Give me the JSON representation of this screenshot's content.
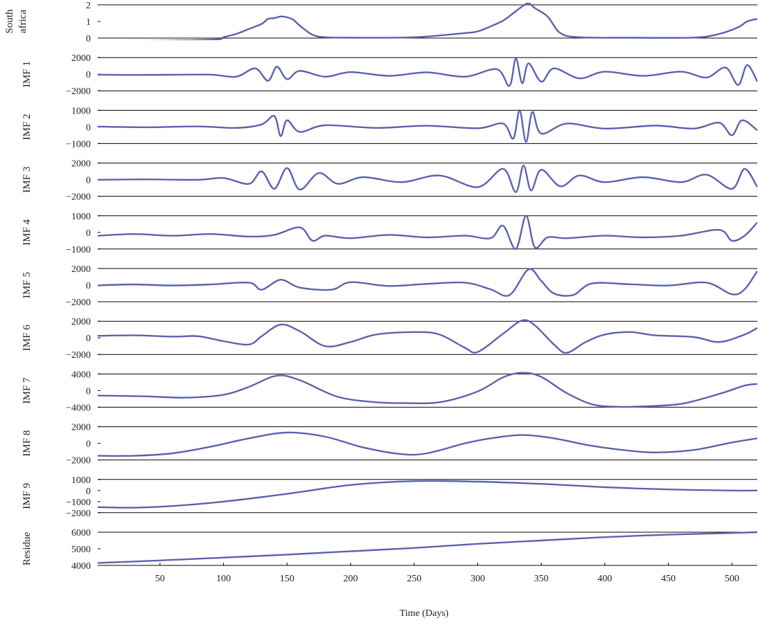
{
  "chart_data": {
    "type": "line",
    "xlabel": "Time (Days)",
    "xlim": [
      1,
      520
    ],
    "xticks": [
      50,
      100,
      150,
      200,
      250,
      300,
      350,
      400,
      450,
      500
    ],
    "line_color": "#5a62ad",
    "panels": [
      {
        "name": "South africa",
        "label_lines": [
          "South",
          "africa"
        ],
        "ylim": [
          0,
          2
        ],
        "yticks": [
          0,
          1,
          2
        ],
        "points": [
          [
            1,
            -0.18
          ],
          [
            30,
            -0.17
          ],
          [
            60,
            -0.15
          ],
          [
            95,
            -0.08
          ],
          [
            100,
            0.05
          ],
          [
            110,
            0.25
          ],
          [
            120,
            0.55
          ],
          [
            130,
            0.85
          ],
          [
            135,
            1.15
          ],
          [
            140,
            1.2
          ],
          [
            145,
            1.3
          ],
          [
            150,
            1.25
          ],
          [
            155,
            1.1
          ],
          [
            160,
            0.75
          ],
          [
            170,
            0.2
          ],
          [
            180,
            0.05
          ],
          [
            200,
            0.02
          ],
          [
            250,
            0.05
          ],
          [
            290,
            0.3
          ],
          [
            300,
            0.4
          ],
          [
            310,
            0.7
          ],
          [
            320,
            1.05
          ],
          [
            328,
            1.5
          ],
          [
            335,
            1.9
          ],
          [
            340,
            2.1
          ],
          [
            345,
            1.8
          ],
          [
            355,
            1.3
          ],
          [
            365,
            0.3
          ],
          [
            380,
            0.05
          ],
          [
            420,
            0.02
          ],
          [
            470,
            0.03
          ],
          [
            490,
            0.25
          ],
          [
            505,
            0.65
          ],
          [
            512,
            1.0
          ],
          [
            520,
            1.15
          ]
        ]
      },
      {
        "name": "IMF 1",
        "label_lines": [
          "IMF 1"
        ],
        "ylim": [
          -2000,
          2000
        ],
        "yticks": [
          -2000,
          0,
          2000
        ],
        "points": [
          [
            1,
            -60
          ],
          [
            30,
            -90
          ],
          [
            60,
            -70
          ],
          [
            90,
            -50
          ],
          [
            110,
            -300
          ],
          [
            125,
            700
          ],
          [
            135,
            -800
          ],
          [
            142,
            900
          ],
          [
            150,
            -600
          ],
          [
            160,
            400
          ],
          [
            180,
            -300
          ],
          [
            200,
            250
          ],
          [
            230,
            -200
          ],
          [
            260,
            220
          ],
          [
            290,
            -300
          ],
          [
            315,
            600
          ],
          [
            325,
            -1400
          ],
          [
            330,
            1900
          ],
          [
            335,
            -1100
          ],
          [
            340,
            1300
          ],
          [
            350,
            -900
          ],
          [
            360,
            700
          ],
          [
            380,
            -500
          ],
          [
            400,
            300
          ],
          [
            430,
            -200
          ],
          [
            460,
            300
          ],
          [
            480,
            -400
          ],
          [
            495,
            800
          ],
          [
            505,
            -1300
          ],
          [
            512,
            1100
          ],
          [
            520,
            -900
          ]
        ]
      },
      {
        "name": "IMF 2",
        "label_lines": [
          "IMF 2"
        ],
        "ylim": [
          -1000,
          1000
        ],
        "yticks": [
          -1000,
          0,
          1000
        ],
        "points": [
          [
            1,
            20
          ],
          [
            40,
            -20
          ],
          [
            80,
            30
          ],
          [
            110,
            -60
          ],
          [
            130,
            150
          ],
          [
            140,
            650
          ],
          [
            145,
            -550
          ],
          [
            150,
            400
          ],
          [
            160,
            -300
          ],
          [
            180,
            100
          ],
          [
            220,
            -60
          ],
          [
            260,
            70
          ],
          [
            300,
            -80
          ],
          [
            320,
            200
          ],
          [
            328,
            -700
          ],
          [
            333,
            1000
          ],
          [
            338,
            -900
          ],
          [
            343,
            900
          ],
          [
            350,
            -400
          ],
          [
            370,
            200
          ],
          [
            400,
            -100
          ],
          [
            440,
            80
          ],
          [
            470,
            -100
          ],
          [
            490,
            250
          ],
          [
            500,
            -500
          ],
          [
            508,
            400
          ],
          [
            520,
            -200
          ]
        ]
      },
      {
        "name": "IMF 3",
        "label_lines": [
          "IMF 3"
        ],
        "ylim": [
          -2000,
          2000
        ],
        "yticks": [
          -2000,
          0,
          2000
        ],
        "points": [
          [
            1,
            -20
          ],
          [
            40,
            30
          ],
          [
            80,
            -20
          ],
          [
            100,
            200
          ],
          [
            120,
            -500
          ],
          [
            130,
            1000
          ],
          [
            140,
            -1100
          ],
          [
            150,
            1400
          ],
          [
            160,
            -1200
          ],
          [
            175,
            800
          ],
          [
            190,
            -500
          ],
          [
            210,
            300
          ],
          [
            240,
            -300
          ],
          [
            270,
            500
          ],
          [
            300,
            -900
          ],
          [
            320,
            1300
          ],
          [
            330,
            -1500
          ],
          [
            336,
            1700
          ],
          [
            342,
            -1300
          ],
          [
            350,
            1200
          ],
          [
            365,
            -800
          ],
          [
            380,
            500
          ],
          [
            400,
            -300
          ],
          [
            430,
            300
          ],
          [
            460,
            -300
          ],
          [
            480,
            600
          ],
          [
            500,
            -1100
          ],
          [
            510,
            1300
          ],
          [
            520,
            -900
          ]
        ]
      },
      {
        "name": "IMF 4",
        "label_lines": [
          "IMF 4"
        ],
        "ylim": [
          -1000,
          1000
        ],
        "yticks": [
          -1000,
          0,
          1000
        ],
        "points": [
          [
            1,
            -200
          ],
          [
            30,
            -100
          ],
          [
            60,
            -200
          ],
          [
            90,
            -100
          ],
          [
            120,
            -250
          ],
          [
            140,
            -150
          ],
          [
            160,
            300
          ],
          [
            170,
            -500
          ],
          [
            180,
            -200
          ],
          [
            200,
            -350
          ],
          [
            230,
            -150
          ],
          [
            260,
            -300
          ],
          [
            290,
            -200
          ],
          [
            310,
            -350
          ],
          [
            320,
            400
          ],
          [
            330,
            -1000
          ],
          [
            338,
            1000
          ],
          [
            345,
            -900
          ],
          [
            355,
            -300
          ],
          [
            370,
            -350
          ],
          [
            400,
            -200
          ],
          [
            430,
            -300
          ],
          [
            460,
            -200
          ],
          [
            490,
            150
          ],
          [
            500,
            -500
          ],
          [
            510,
            -200
          ],
          [
            520,
            600
          ]
        ]
      },
      {
        "name": "IMF 5",
        "label_lines": [
          "IMF 5"
        ],
        "ylim": [
          -2000,
          2000
        ],
        "yticks": [
          -2000,
          0,
          2000
        ],
        "points": [
          [
            1,
            -30
          ],
          [
            30,
            80
          ],
          [
            60,
            -40
          ],
          [
            90,
            80
          ],
          [
            120,
            300
          ],
          [
            130,
            -550
          ],
          [
            145,
            650
          ],
          [
            160,
            -300
          ],
          [
            185,
            -550
          ],
          [
            200,
            350
          ],
          [
            230,
            -100
          ],
          [
            260,
            150
          ],
          [
            290,
            300
          ],
          [
            310,
            -500
          ],
          [
            325,
            -1200
          ],
          [
            340,
            1900
          ],
          [
            350,
            500
          ],
          [
            360,
            -1000
          ],
          [
            375,
            -1200
          ],
          [
            390,
            200
          ],
          [
            420,
            100
          ],
          [
            450,
            -50
          ],
          [
            480,
            300
          ],
          [
            500,
            -1100
          ],
          [
            510,
            -500
          ],
          [
            520,
            1700
          ]
        ]
      },
      {
        "name": "IMF 6",
        "label_lines": [
          "IMF 6"
        ],
        "ylim": [
          -2000,
          2000
        ],
        "yticks": [
          -2000,
          0,
          2000
        ],
        "points": [
          [
            1,
            250
          ],
          [
            30,
            300
          ],
          [
            60,
            150
          ],
          [
            80,
            200
          ],
          [
            100,
            -400
          ],
          [
            120,
            -800
          ],
          [
            130,
            200
          ],
          [
            145,
            1600
          ],
          [
            160,
            800
          ],
          [
            180,
            -1000
          ],
          [
            200,
            -500
          ],
          [
            220,
            400
          ],
          [
            250,
            700
          ],
          [
            270,
            400
          ],
          [
            290,
            -1200
          ],
          [
            300,
            -1700
          ],
          [
            320,
            500
          ],
          [
            335,
            2100
          ],
          [
            345,
            1500
          ],
          [
            360,
            -800
          ],
          [
            370,
            -1800
          ],
          [
            385,
            -500
          ],
          [
            400,
            400
          ],
          [
            420,
            700
          ],
          [
            440,
            300
          ],
          [
            470,
            100
          ],
          [
            490,
            -500
          ],
          [
            510,
            400
          ],
          [
            520,
            1200
          ]
        ]
      },
      {
        "name": "IMF 7",
        "label_lines": [
          "IMF 7"
        ],
        "ylim": [
          -4000,
          4000
        ],
        "yticks": [
          -4000,
          0,
          4000
        ],
        "points": [
          [
            1,
            -1200
          ],
          [
            40,
            -1400
          ],
          [
            70,
            -1700
          ],
          [
            100,
            -1000
          ],
          [
            120,
            900
          ],
          [
            142,
            3600
          ],
          [
            160,
            2500
          ],
          [
            190,
            -1500
          ],
          [
            220,
            -2800
          ],
          [
            240,
            -3000
          ],
          [
            270,
            -2800
          ],
          [
            300,
            -200
          ],
          [
            320,
            3200
          ],
          [
            335,
            4300
          ],
          [
            350,
            3300
          ],
          [
            370,
            -600
          ],
          [
            390,
            -3300
          ],
          [
            410,
            -3900
          ],
          [
            430,
            -3800
          ],
          [
            460,
            -3200
          ],
          [
            490,
            -800
          ],
          [
            510,
            1200
          ],
          [
            520,
            1600
          ]
        ]
      },
      {
        "name": "IMF 8",
        "label_lines": [
          "IMF 8"
        ],
        "ylim": [
          -2000,
          2000
        ],
        "yticks": [
          -2000,
          0,
          2000
        ],
        "points": [
          [
            1,
            -1500
          ],
          [
            30,
            -1500
          ],
          [
            60,
            -1200
          ],
          [
            90,
            -400
          ],
          [
            120,
            600
          ],
          [
            150,
            1300
          ],
          [
            180,
            800
          ],
          [
            210,
            -500
          ],
          [
            240,
            -1300
          ],
          [
            260,
            -1200
          ],
          [
            290,
            0
          ],
          [
            310,
            600
          ],
          [
            335,
            1000
          ],
          [
            360,
            600
          ],
          [
            390,
            -300
          ],
          [
            420,
            -900
          ],
          [
            440,
            -1100
          ],
          [
            470,
            -800
          ],
          [
            500,
            100
          ],
          [
            520,
            600
          ]
        ]
      },
      {
        "name": "IMF 9",
        "label_lines": [
          "IMF 9"
        ],
        "ylim": [
          -2000,
          1000
        ],
        "yticks": [
          -2000,
          -1000,
          0,
          1000
        ],
        "points": [
          [
            1,
            -1500
          ],
          [
            30,
            -1550
          ],
          [
            60,
            -1400
          ],
          [
            100,
            -1000
          ],
          [
            150,
            -300
          ],
          [
            200,
            500
          ],
          [
            250,
            850
          ],
          [
            300,
            800
          ],
          [
            350,
            600
          ],
          [
            400,
            300
          ],
          [
            450,
            100
          ],
          [
            500,
            0
          ],
          [
            520,
            0
          ]
        ]
      },
      {
        "name": "Residue",
        "label_lines": [
          "Residue"
        ],
        "ylim": [
          4000,
          6000
        ],
        "yticks": [
          4000,
          5000,
          6000
        ],
        "points": [
          [
            1,
            4150
          ],
          [
            50,
            4300
          ],
          [
            100,
            4470
          ],
          [
            150,
            4650
          ],
          [
            200,
            4850
          ],
          [
            250,
            5050
          ],
          [
            300,
            5300
          ],
          [
            350,
            5500
          ],
          [
            400,
            5700
          ],
          [
            450,
            5850
          ],
          [
            500,
            5950
          ],
          [
            520,
            6000
          ]
        ]
      }
    ]
  }
}
